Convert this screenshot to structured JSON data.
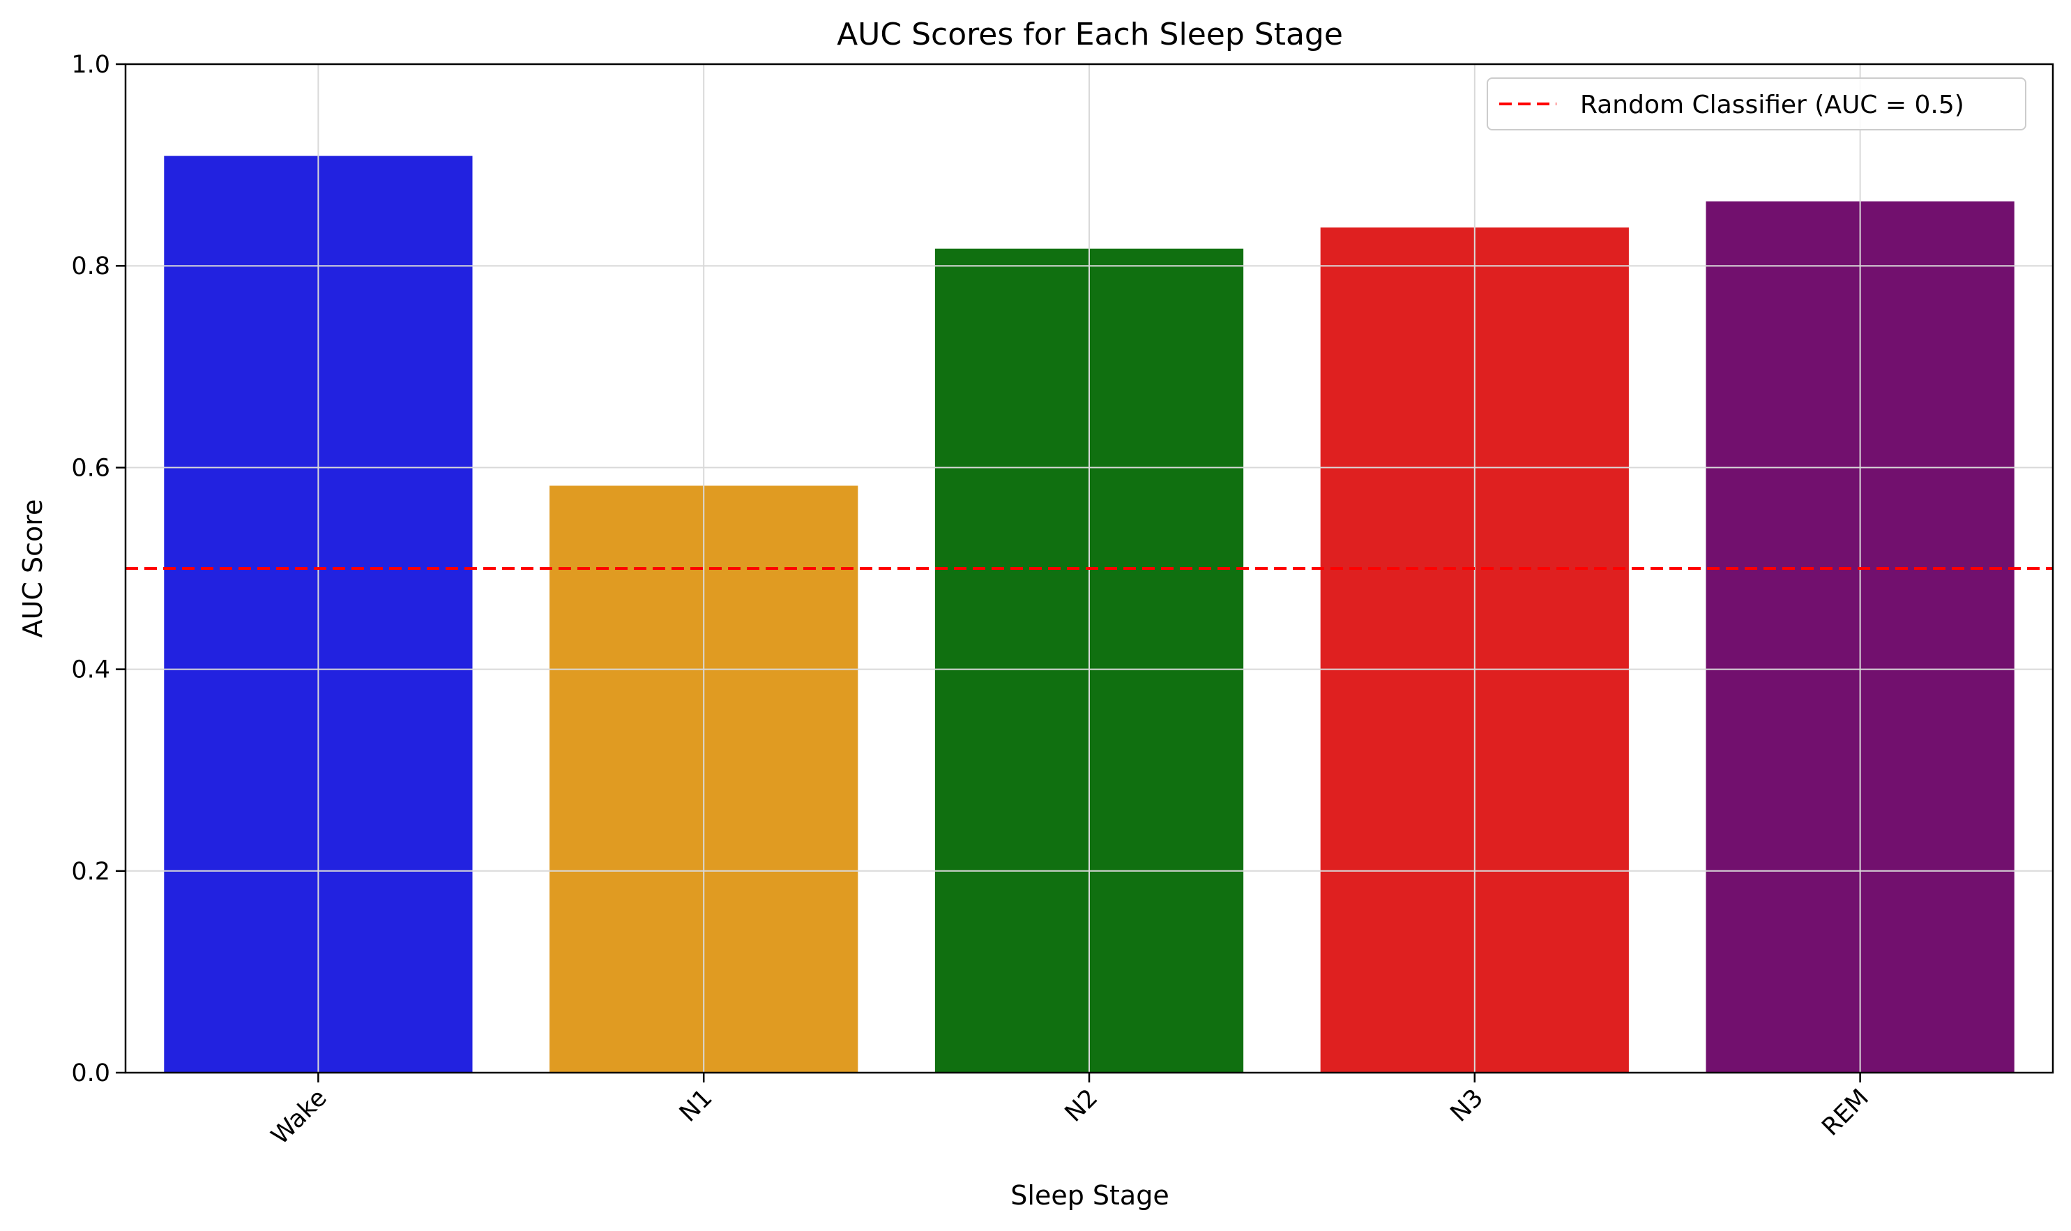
{
  "chart_data": {
    "type": "bar",
    "title": "AUC Scores for Each Sleep Stage",
    "xlabel": "Sleep Stage",
    "ylabel": "AUC Score",
    "categories": [
      "Wake",
      "N1",
      "N2",
      "N3",
      "REM"
    ],
    "values": [
      0.909,
      0.582,
      0.817,
      0.838,
      0.864
    ],
    "bar_colors": [
      "#2222e0",
      "#e09b22",
      "#107010",
      "#df2020",
      "#72106e"
    ],
    "ylim": [
      0,
      1.0
    ],
    "yticks": [
      "0.0",
      "0.2",
      "0.4",
      "0.6",
      "0.8",
      "1.0"
    ],
    "ytick_values": [
      0,
      0.2,
      0.4,
      0.6,
      0.8,
      1.0
    ],
    "grid": true,
    "reference_line": {
      "value": 0.5,
      "label": "Random Classifier (AUC = 0.5)",
      "color": "#ff0000",
      "style": "dashed"
    },
    "legend": {
      "position": "top-right"
    }
  }
}
